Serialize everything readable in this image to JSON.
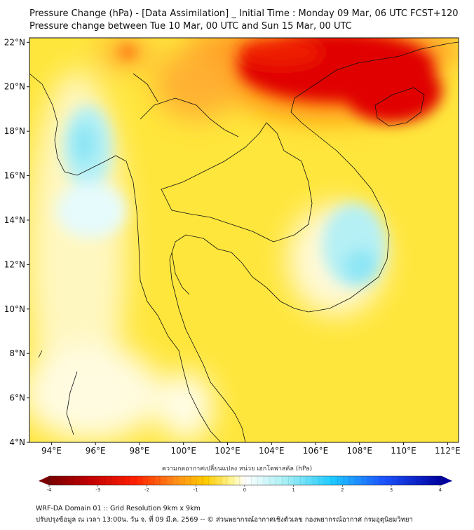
{
  "header": {
    "title_line1": "Pressure Change (hPa) - [Data Assimilation] _ Initial Time : Monday 09 Mar, 06 UTC FCST+120",
    "title_line2": "Pressure change between Tue 10 Mar, 00 UTC and Sun 15 Mar, 00 UTC"
  },
  "map": {
    "lon_ticks": [
      "94°E",
      "96°E",
      "98°E",
      "100°E",
      "102°E",
      "104°E",
      "106°E",
      "108°E",
      "110°E",
      "112°E"
    ],
    "lat_ticks": [
      "22°N",
      "20°N",
      "18°N",
      "16°N",
      "14°N",
      "12°N",
      "10°N",
      "8°N",
      "6°N",
      "4°N"
    ],
    "lon_range": [
      93,
      112.5
    ],
    "lat_range": [
      4,
      22.2
    ]
  },
  "colorbar": {
    "label": "ความกดอากาศเปลี่ยนแปลง หน่วย เฮกโตพาสคัล (hPa)",
    "ticks": [
      "-4",
      "-3",
      "-2",
      "-1",
      "0",
      "1",
      "2",
      "3",
      "4"
    ],
    "colors": {
      "strong_negative": "#7a0000",
      "negative": "#e60000",
      "mild_negative": "#ff8c1a",
      "slight_negative": "#ffe000",
      "zero": "#ffffff",
      "slight_positive": "#a8f0f5",
      "positive": "#1ecbff",
      "strong_positive": "#0000a0"
    }
  },
  "footer": {
    "line1": "WRF-DA Domain 01 :: Grid Resolution 9km x 9km",
    "line2": "ปรับปรุงข้อมูล ณ เวลา 13:00น. วัน จ. ที่ 09 มี.ค. 2569 -- © ส่วนพยากรณ์อากาศเชิงตัวเลข กองพยากรณ์อากาศ กรมอุตุนิยมวิทยา"
  }
}
